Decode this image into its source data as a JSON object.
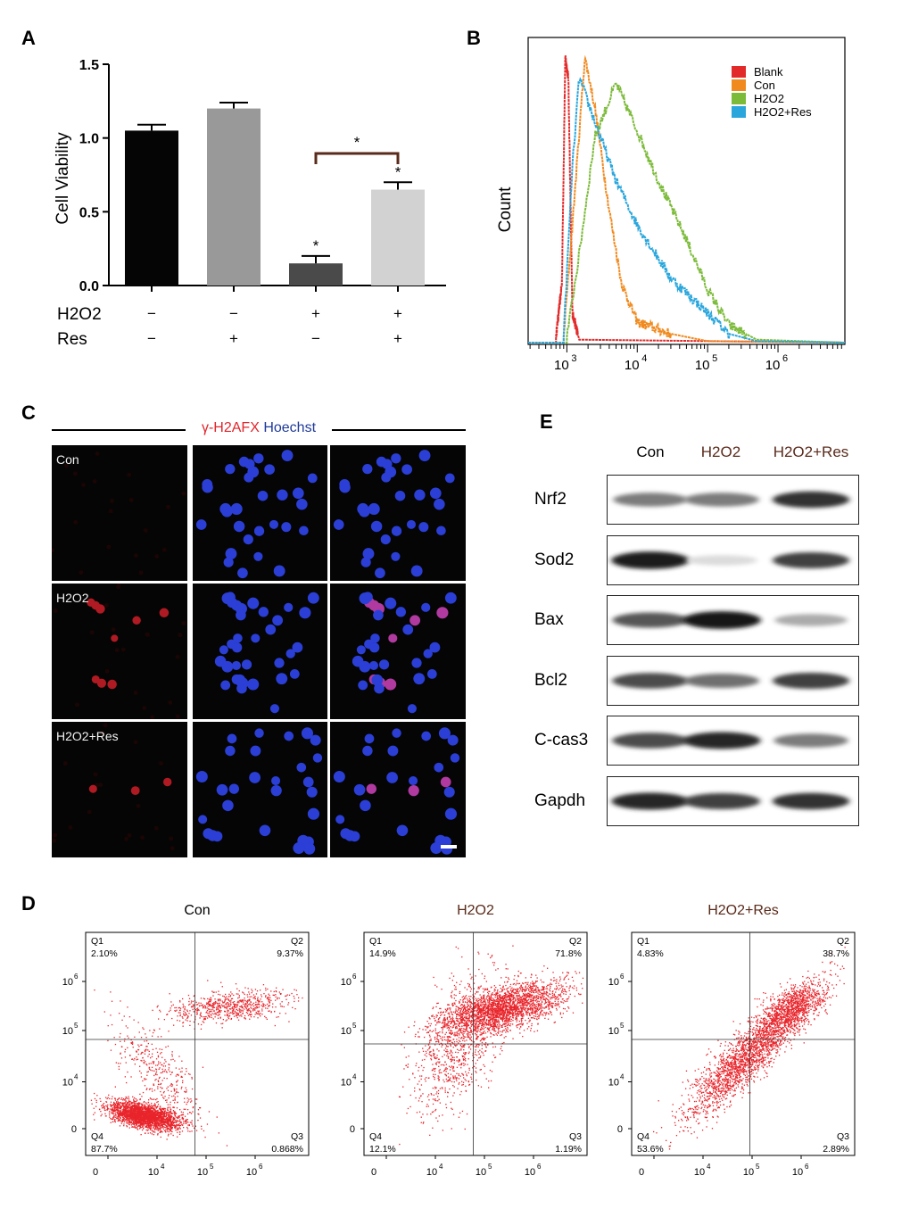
{
  "panels": {
    "a": "A",
    "b": "B",
    "c": "C",
    "d": "D",
    "e": "E"
  },
  "chart_data": [
    {
      "id": "A",
      "type": "bar",
      "ylabel": "Cell Viability",
      "ylim": [
        0,
        1.5
      ],
      "yticks": [
        "0.0",
        "0.5",
        "1.0",
        "1.5"
      ],
      "ytick_values": [
        0,
        0.5,
        1.0,
        1.5
      ],
      "categories": [
        "Con",
        "Res",
        "H2O2",
        "H2O2+Res"
      ],
      "values": [
        1.05,
        1.2,
        0.15,
        0.65
      ],
      "errors": [
        0.04,
        0.04,
        0.05,
        0.05
      ],
      "colors": [
        "#050505",
        "#999999",
        "#4a4a4a",
        "#d2d2d2"
      ],
      "significance": [
        "",
        "",
        "*",
        "*"
      ],
      "bracket": {
        "from": 2,
        "to": 3,
        "label": "*"
      },
      "conditions": [
        {
          "name": "H2O2",
          "marks": [
            "−",
            "−",
            "+",
            "+"
          ]
        },
        {
          "name": "Res",
          "marks": [
            "−",
            "+",
            "−",
            "+"
          ]
        }
      ]
    },
    {
      "id": "B",
      "type": "line",
      "ylabel": "Count",
      "xscale": "log",
      "xticks": [
        "10",
        "10",
        "10",
        "10"
      ],
      "xtick_exps": [
        "3",
        "4",
        "5",
        "6"
      ],
      "xtick_values": [
        1000,
        10000,
        100000,
        1000000
      ],
      "legend": [
        {
          "name": "Blank",
          "color": "#e32a2a"
        },
        {
          "name": "Con",
          "color": "#f08a1f"
        },
        {
          "name": "H2O2",
          "color": "#7cbb3a"
        },
        {
          "name": "H2O2+Res",
          "color": "#2aa6dc"
        }
      ],
      "legend_position": "top-right",
      "series": [
        {
          "name": "Blank",
          "peak_x": 950,
          "relative_height": [
            [
              700,
              0.02
            ],
            [
              850,
              0.2
            ],
            [
              950,
              0.97
            ],
            [
              1050,
              0.9
            ],
            [
              1200,
              0.1
            ],
            [
              1500,
              0.01
            ]
          ]
        },
        {
          "name": "Con",
          "peak_x": 1800,
          "relative_height": [
            [
              900,
              0.02
            ],
            [
              1200,
              0.4
            ],
            [
              1800,
              0.97
            ],
            [
              2500,
              0.8
            ],
            [
              4000,
              0.45
            ],
            [
              6000,
              0.2
            ],
            [
              10000,
              0.07
            ],
            [
              30000,
              0.03
            ],
            [
              100000,
              0.005
            ]
          ]
        },
        {
          "name": "H2O2",
          "peak_x": 5000,
          "relative_height": [
            [
              1000,
              0.02
            ],
            [
              1500,
              0.3
            ],
            [
              2500,
              0.7
            ],
            [
              5000,
              0.88
            ],
            [
              10000,
              0.72
            ],
            [
              20000,
              0.55
            ],
            [
              50000,
              0.35
            ],
            [
              100000,
              0.18
            ],
            [
              200000,
              0.06
            ],
            [
              500000,
              0.01
            ]
          ]
        },
        {
          "name": "H2O2+Res",
          "peak_x": 1500,
          "relative_height": [
            [
              900,
              0.02
            ],
            [
              1200,
              0.6
            ],
            [
              1500,
              0.9
            ],
            [
              2500,
              0.75
            ],
            [
              5000,
              0.55
            ],
            [
              10000,
              0.4
            ],
            [
              30000,
              0.22
            ],
            [
              100000,
              0.1
            ],
            [
              200000,
              0.03
            ],
            [
              500000,
              0.005
            ]
          ]
        }
      ]
    }
  ],
  "panel_c": {
    "header_red": "γ-H2AFX",
    "header_blue": "Hoechst",
    "rows": [
      "Con",
      "H2O2",
      "H2O2+Res"
    ]
  },
  "panel_e": {
    "columns": [
      "Con",
      "H2O2",
      "H2O2+Res"
    ],
    "proteins": [
      "Nrf2",
      "Sod2",
      "Bax",
      "Bcl2",
      "C-cas3",
      "Gapdh"
    ],
    "band_intensity": [
      [
        0.55,
        0.55,
        0.85
      ],
      [
        0.95,
        0.15,
        0.8
      ],
      [
        0.7,
        0.98,
        0.35
      ],
      [
        0.75,
        0.6,
        0.8
      ],
      [
        0.75,
        0.9,
        0.55
      ],
      [
        0.9,
        0.8,
        0.85
      ]
    ]
  },
  "panel_d": {
    "plots": [
      {
        "title": "Con",
        "q1": "Q1",
        "q1_val": "2.10%",
        "q2": "Q2",
        "q2_val": "9.37%",
        "q3": "Q3",
        "q3_val": "0.868%",
        "q4": "Q4",
        "q4_val": "87.7%"
      },
      {
        "title": "H2O2",
        "q1": "Q1",
        "q1_val": "14.9%",
        "q2": "Q2",
        "q2_val": "71.8%",
        "q3": "Q3",
        "q3_val": "1.19%",
        "q4": "Q4",
        "q4_val": "12.1%"
      },
      {
        "title": "H2O2+Res",
        "q1": "Q1",
        "q1_val": "4.83%",
        "q2": "Q2",
        "q2_val": "38.7%",
        "q3": "Q3",
        "q3_val": "2.89%",
        "q4": "Q4",
        "q4_val": "53.6%"
      }
    ],
    "axis_base": "10",
    "tick_exps": [
      "4",
      "5",
      "6"
    ],
    "zero": "0"
  }
}
